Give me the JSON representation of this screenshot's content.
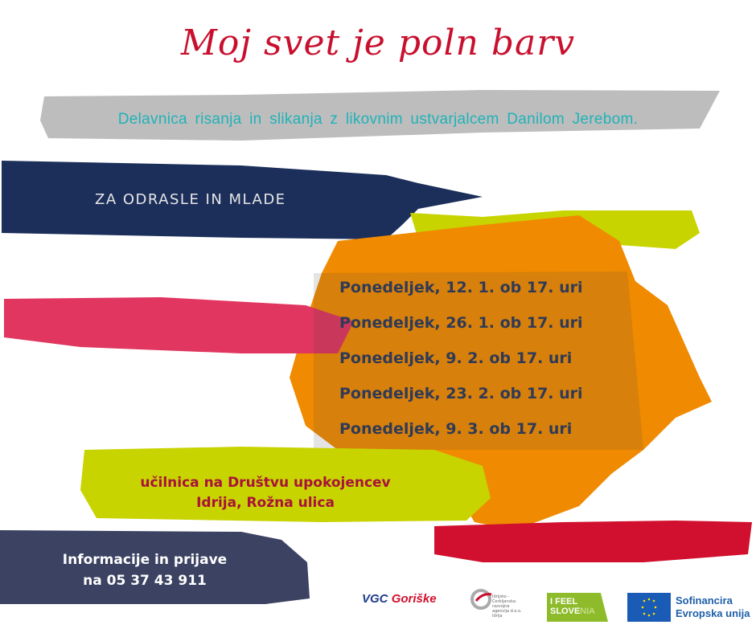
{
  "title": "Moj svet je poln barv",
  "subtitle": "Delavnica risanja in slikanja z likovnim ustvarjalcem Danilom Jerebom.",
  "audience": "ZA ODRASLE IN MLADE",
  "dates": [
    "Ponedeljek, 12. 1. ob 17. uri",
    "Ponedeljek, 26. 1. ob 17. uri",
    "Ponedeljek, 9. 2. ob 17. uri",
    "Ponedeljek, 23. 2. ob 17. uri",
    "Ponedeljek, 9. 3. ob 17. uri"
  ],
  "venue": {
    "line1": "učilnica na Društvu upokojencev",
    "line2": "Idrija, Rožna ulica"
  },
  "info": {
    "line1": "Informacije in prijave",
    "line2": "na 05 37 43 911"
  },
  "logos": {
    "vgc": {
      "part1": "VGC",
      "part2": "Goriške"
    },
    "rra": "Idrijsko - Cerkljanska razvojna agencija d.o.o. Idrija",
    "ifeel": {
      "line1": "I FEEL",
      "line2a": "SLOVE",
      "line2b": "NIA"
    },
    "eu": {
      "line1": "Sofinancira",
      "line2": "Evropska unija"
    }
  },
  "colors": {
    "title": "#c8102e",
    "subtitle": "#1fb3b8",
    "navy": "#1c2f5a",
    "orange": "#f08a00",
    "lime": "#c8d400",
    "pink": "#e0365f",
    "grey": "#bdbdbd",
    "red": "#d0102e",
    "slate": "#3b4262"
  }
}
